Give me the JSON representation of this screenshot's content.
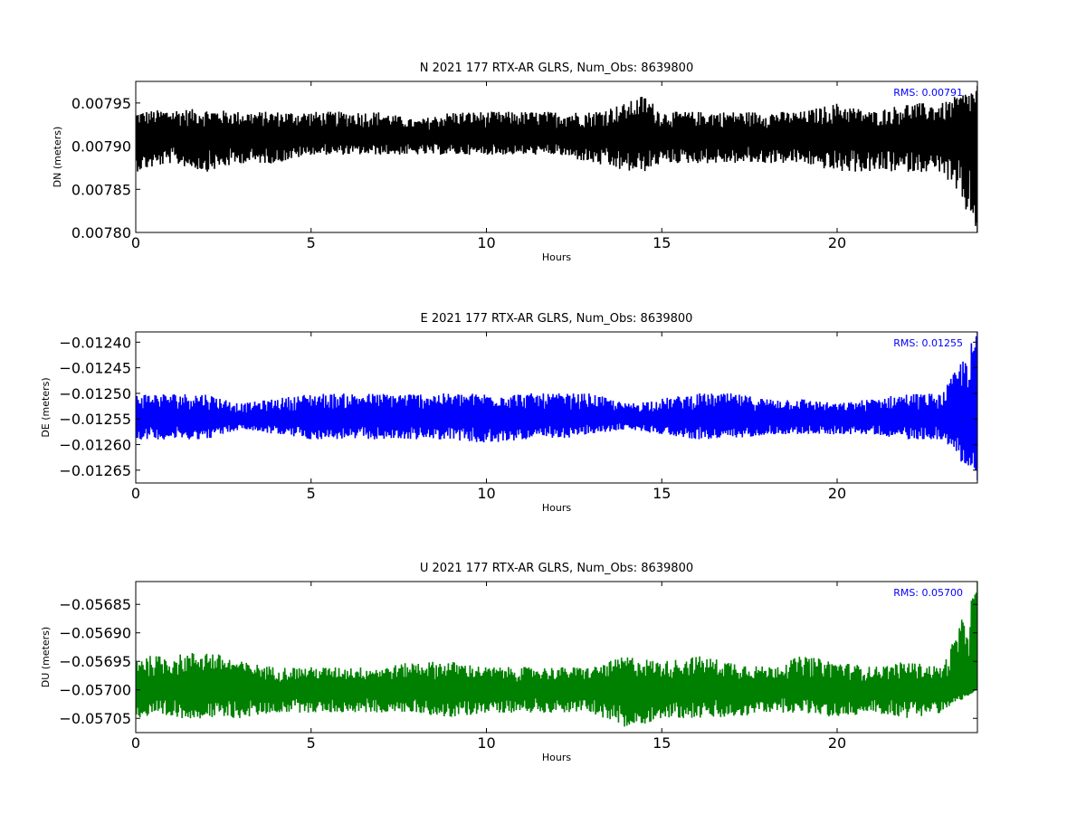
{
  "chart_data": [
    {
      "type": "line",
      "title": "N 2021 177 RTX-AR  GLRS, Num_Obs: 8639800",
      "xlabel": "Hours",
      "ylabel": "DN (meters)",
      "xlim": [
        0,
        24
      ],
      "ylim": [
        0.0078,
        0.007975
      ],
      "xticks": [
        "0",
        "5",
        "10",
        "15",
        "20"
      ],
      "yticks": [
        "0.00780",
        "0.00785",
        "0.00790",
        "0.00795"
      ],
      "rms_label": "RMS:  0.00791",
      "color": "#000000",
      "series": [
        {
          "mean": 0.00791,
          "x": [
            0,
            1,
            2,
            3,
            4,
            5,
            6,
            7,
            8,
            9,
            10,
            11,
            12,
            13,
            14,
            14.5,
            15,
            16,
            17,
            18,
            19,
            20,
            21,
            22,
            23,
            24
          ],
          "max": [
            0.00794,
            0.007943,
            0.007943,
            0.00794,
            0.00794,
            0.00794,
            0.00794,
            0.00794,
            0.00793,
            0.00794,
            0.00794,
            0.00794,
            0.00794,
            0.00794,
            0.00795,
            0.00796,
            0.00794,
            0.00794,
            0.00794,
            0.00794,
            0.00794,
            0.00795,
            0.00794,
            0.00795,
            0.00795,
            0.00797
          ],
          "min": [
            0.00787,
            0.00788,
            0.00787,
            0.00788,
            0.00788,
            0.00789,
            0.00789,
            0.00789,
            0.00789,
            0.00789,
            0.00789,
            0.00789,
            0.00789,
            0.00788,
            0.00787,
            0.00787,
            0.00788,
            0.00788,
            0.00788,
            0.00788,
            0.00788,
            0.00787,
            0.00787,
            0.00787,
            0.00787,
            0.0078
          ]
        }
      ]
    },
    {
      "type": "line",
      "title": "E 2021 177 RTX-AR  GLRS, Num_Obs: 8639800",
      "xlabel": "Hours",
      "ylabel": "DE (meters)",
      "xlim": [
        0,
        24
      ],
      "ylim": [
        -0.012675,
        -0.01238
      ],
      "xticks": [
        "0",
        "5",
        "10",
        "15",
        "20"
      ],
      "yticks": [
        "−0.01240",
        "−0.01245",
        "−0.01250",
        "−0.01255",
        "−0.01260",
        "−0.01265"
      ],
      "rms_label": "RMS:  0.01255",
      "color": "#0000ff",
      "series": [
        {
          "mean": -0.01255,
          "x": [
            0,
            1,
            2,
            3,
            4,
            5,
            6,
            7,
            8,
            9,
            10,
            11,
            12,
            13,
            14,
            15,
            16,
            17,
            18,
            19,
            20,
            21,
            22,
            23,
            24
          ],
          "max": [
            -0.0125,
            -0.0125,
            -0.0125,
            -0.01252,
            -0.01251,
            -0.0125,
            -0.0125,
            -0.0125,
            -0.0125,
            -0.0125,
            -0.0125,
            -0.0125,
            -0.0125,
            -0.0125,
            -0.01252,
            -0.01251,
            -0.0125,
            -0.0125,
            -0.01251,
            -0.01251,
            -0.01252,
            -0.01251,
            -0.0125,
            -0.0125,
            -0.01238
          ],
          "min": [
            -0.01259,
            -0.01259,
            -0.01259,
            -0.01257,
            -0.01258,
            -0.01259,
            -0.01259,
            -0.01259,
            -0.01259,
            -0.01259,
            -0.0126,
            -0.01259,
            -0.01259,
            -0.01258,
            -0.01257,
            -0.01258,
            -0.01259,
            -0.01259,
            -0.01258,
            -0.01258,
            -0.01258,
            -0.01258,
            -0.01259,
            -0.01259,
            -0.01267
          ]
        }
      ]
    },
    {
      "type": "line",
      "title": "U 2021 177 RTX-AR  GLRS, Num_Obs: 8639800",
      "xlabel": "Hours",
      "ylabel": "DU (meters)",
      "xlim": [
        0,
        24
      ],
      "ylim": [
        -0.057075,
        -0.05681
      ],
      "xticks": [
        "0",
        "5",
        "10",
        "15",
        "20"
      ],
      "yticks": [
        "−0.05685",
        "−0.05690",
        "−0.05695",
        "−0.05700",
        "−0.05705"
      ],
      "rms_label": "RMS:  0.05700",
      "color": "#008000",
      "series": [
        {
          "mean": -0.057,
          "x": [
            0,
            1,
            2,
            3,
            4,
            5,
            6,
            7,
            8,
            9,
            10,
            11,
            12,
            13,
            14,
            15,
            16,
            17,
            18,
            19,
            20,
            21,
            22,
            23,
            24
          ],
          "max": [
            -0.05694,
            -0.05694,
            -0.05693,
            -0.05695,
            -0.05696,
            -0.05696,
            -0.05696,
            -0.05696,
            -0.05695,
            -0.05695,
            -0.05696,
            -0.05696,
            -0.05696,
            -0.05696,
            -0.05694,
            -0.05695,
            -0.05694,
            -0.05695,
            -0.05696,
            -0.05694,
            -0.05695,
            -0.05696,
            -0.05695,
            -0.05696,
            -0.05681
          ],
          "min": [
            -0.05705,
            -0.05705,
            -0.05705,
            -0.05705,
            -0.05704,
            -0.05704,
            -0.05704,
            -0.05704,
            -0.05704,
            -0.05705,
            -0.05704,
            -0.05704,
            -0.05704,
            -0.05704,
            -0.05707,
            -0.05705,
            -0.05705,
            -0.05705,
            -0.05704,
            -0.05704,
            -0.05705,
            -0.05704,
            -0.05705,
            -0.05704,
            -0.057
          ]
        }
      ]
    }
  ]
}
